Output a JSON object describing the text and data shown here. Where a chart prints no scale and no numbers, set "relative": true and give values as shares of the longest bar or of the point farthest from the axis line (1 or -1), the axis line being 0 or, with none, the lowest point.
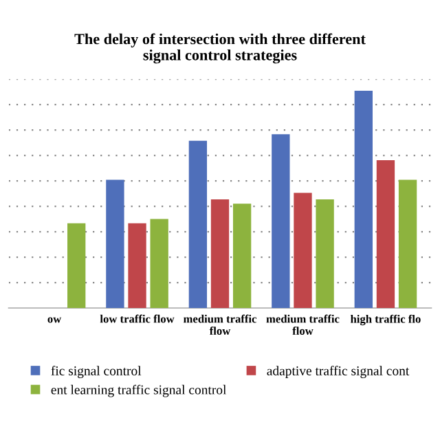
{
  "chart_data": {
    "type": "bar",
    "title": "The delay of intersection with three different\nsignal control strategies",
    "categories": [
      "ow",
      "low traffic flow",
      "medium traffic\nflow",
      "medium traffic\nflow",
      "high traffic flo"
    ],
    "relative": true,
    "grid": "y",
    "legend": "bottom",
    "series": [
      {
        "name": "fic signal control",
        "color": "#4f6fba",
        "values": [
          null,
          0.59,
          0.77,
          0.8,
          1
        ]
      },
      {
        "name": "adaptive traffic signal cont",
        "color": "#c0464a",
        "values": [
          null,
          0.39,
          0.5,
          0.53,
          0.68
        ]
      },
      {
        "name": "ent learning traffic signal control",
        "color": "#8db33e",
        "values": [
          0.39,
          0.41,
          0.48,
          0.5,
          0.59
        ]
      }
    ]
  }
}
